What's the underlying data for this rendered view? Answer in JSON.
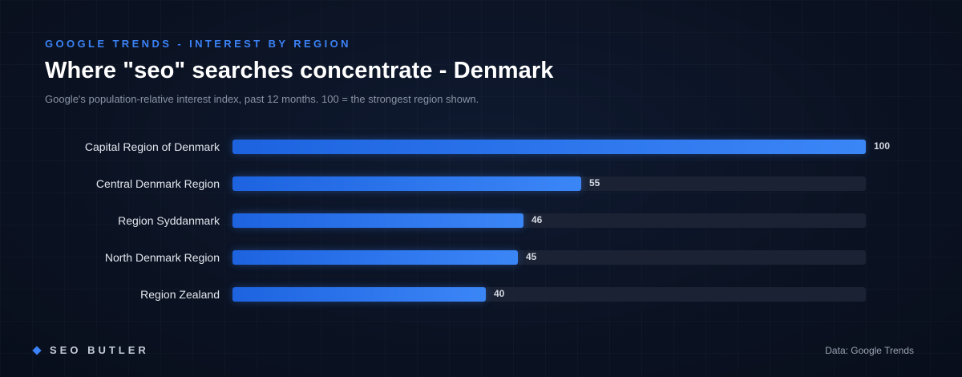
{
  "header": {
    "eyebrow": "GOOGLE TRENDS - INTEREST BY REGION",
    "title": "Where \"seo\" searches concentrate - Denmark",
    "subtitle": "Google's population-relative interest index, past 12 months. 100 = the strongest region shown."
  },
  "chart_data": {
    "type": "bar",
    "orientation": "horizontal",
    "title": "Where \"seo\" searches concentrate - Denmark",
    "subtitle": "Google's population-relative interest index, past 12 months. 100 = the strongest region shown.",
    "categories": [
      "Capital Region of Denmark",
      "Central Denmark Region",
      "Region Syddanmark",
      "North Denmark Region",
      "Region Zealand"
    ],
    "values": [
      100,
      55,
      46,
      45,
      40
    ],
    "xlim": [
      0,
      100
    ],
    "grid": false,
    "data_labels": true,
    "bar_color": "#2f78f0",
    "track_color": "#1a2234"
  },
  "footer": {
    "brand": "SEO BUTLER",
    "brand_icon": "diamond-icon",
    "source": "Data: Google Trends"
  },
  "colors": {
    "accent": "#3b82f6",
    "background": "#0b1323"
  }
}
